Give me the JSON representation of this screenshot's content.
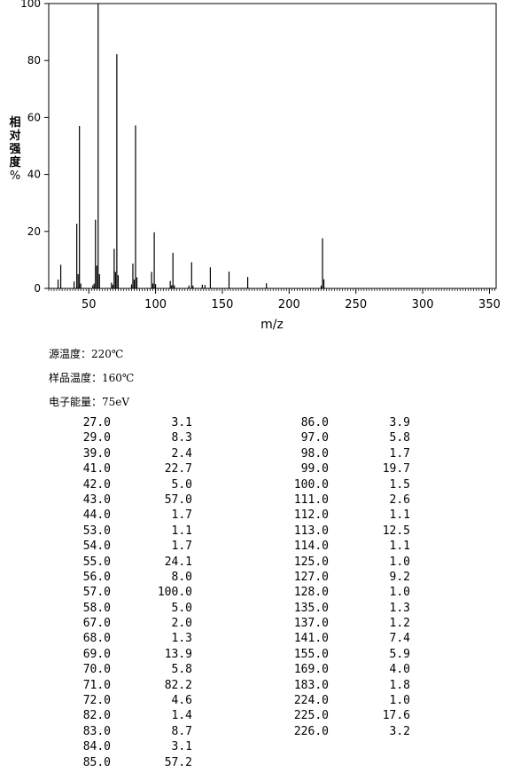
{
  "chart_data": {
    "type": "bar",
    "xlabel": "m/z",
    "ylabel": "相对强度%",
    "xlim": [
      20,
      355
    ],
    "ylim": [
      0,
      100
    ],
    "xticks": [
      50,
      100,
      150,
      200,
      250,
      300,
      350
    ],
    "yticks": [
      0,
      20,
      40,
      60,
      80,
      100
    ],
    "peaks": [
      [
        27.0,
        3.1
      ],
      [
        29.0,
        8.3
      ],
      [
        39.0,
        2.4
      ],
      [
        41.0,
        22.7
      ],
      [
        42.0,
        5.0
      ],
      [
        43.0,
        57.0
      ],
      [
        44.0,
        1.7
      ],
      [
        53.0,
        1.1
      ],
      [
        54.0,
        1.7
      ],
      [
        55.0,
        24.1
      ],
      [
        56.0,
        8.0
      ],
      [
        57.0,
        100.0
      ],
      [
        58.0,
        5.0
      ],
      [
        67.0,
        2.0
      ],
      [
        68.0,
        1.3
      ],
      [
        69.0,
        13.9
      ],
      [
        70.0,
        5.8
      ],
      [
        71.0,
        82.2
      ],
      [
        72.0,
        4.6
      ],
      [
        82.0,
        1.4
      ],
      [
        83.0,
        8.7
      ],
      [
        84.0,
        3.1
      ],
      [
        85.0,
        57.2
      ],
      [
        86.0,
        3.9
      ],
      [
        97.0,
        5.8
      ],
      [
        98.0,
        1.7
      ],
      [
        99.0,
        19.7
      ],
      [
        100.0,
        1.5
      ],
      [
        111.0,
        2.6
      ],
      [
        112.0,
        1.1
      ],
      [
        113.0,
        12.5
      ],
      [
        114.0,
        1.1
      ],
      [
        125.0,
        1.0
      ],
      [
        127.0,
        9.2
      ],
      [
        128.0,
        1.0
      ],
      [
        135.0,
        1.3
      ],
      [
        137.0,
        1.2
      ],
      [
        141.0,
        7.4
      ],
      [
        155.0,
        5.9
      ],
      [
        169.0,
        4.0
      ],
      [
        183.0,
        1.8
      ],
      [
        224.0,
        1.0
      ],
      [
        225.0,
        17.6
      ],
      [
        226.0,
        3.2
      ]
    ]
  },
  "conditions": {
    "source_temp": "源温度：220℃",
    "sample_temp": "样品温度：160℃",
    "electron_energy": "电子能量：75eV"
  },
  "peak_table": {
    "col1_mz": [
      "27.0",
      "29.0",
      "39.0",
      "41.0",
      "42.0",
      "43.0",
      "44.0",
      "53.0",
      "54.0",
      "55.0",
      "56.0",
      "57.0",
      "58.0",
      "67.0",
      "68.0",
      "69.0",
      "70.0",
      "71.0",
      "72.0",
      "82.0",
      "83.0",
      "84.0",
      "85.0"
    ],
    "col1_ab": [
      "3.1",
      "8.3",
      "2.4",
      "22.7",
      "5.0",
      "57.0",
      "1.7",
      "1.1",
      "1.7",
      "24.1",
      "8.0",
      "100.0",
      "5.0",
      "2.0",
      "1.3",
      "13.9",
      "5.8",
      "82.2",
      "4.6",
      "1.4",
      "8.7",
      "3.1",
      "57.2"
    ],
    "col2_mz": [
      "86.0",
      "97.0",
      "98.0",
      "99.0",
      "100.0",
      "111.0",
      "112.0",
      "113.0",
      "114.0",
      "125.0",
      "127.0",
      "128.0",
      "135.0",
      "137.0",
      "141.0",
      "155.0",
      "169.0",
      "183.0",
      "224.0",
      "225.0",
      "226.0"
    ],
    "col2_ab": [
      "3.9",
      "5.8",
      "1.7",
      "19.7",
      "1.5",
      "2.6",
      "1.1",
      "12.5",
      "1.1",
      "1.0",
      "9.2",
      "1.0",
      "1.3",
      "1.2",
      "7.4",
      "5.9",
      "4.0",
      "1.8",
      "1.0",
      "17.6",
      "3.2"
    ]
  }
}
